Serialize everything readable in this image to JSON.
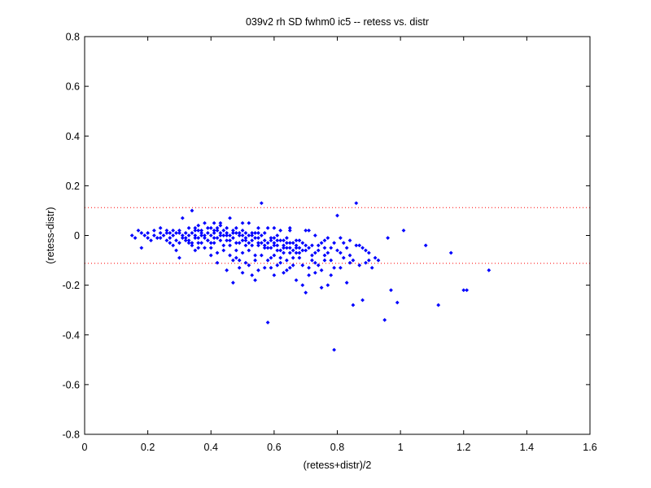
{
  "chart_data": {
    "type": "scatter",
    "title": "039v2 rh SD fwhm0 ic5 -- retess vs. distr",
    "xlabel": "(retess+distr)/2",
    "ylabel": "(retess-distr)",
    "xlim": [
      0,
      1.6
    ],
    "ylim": [
      -0.8,
      0.8
    ],
    "xticks": [
      "0",
      "0.2",
      "0.4",
      "0.6",
      "0.8",
      "1",
      "1.2",
      "1.4",
      "1.6"
    ],
    "yticks": [
      "-0.8",
      "-0.6",
      "-0.4",
      "-0.2",
      "0",
      "0.2",
      "0.4",
      "0.6",
      "0.8"
    ],
    "grid": false,
    "marker_color": "#0000ff",
    "reference_line_color": "#ff0000",
    "reference_lines": [
      0.112,
      -0.112
    ],
    "points": [
      [
        0.15,
        0.0
      ],
      [
        0.16,
        -0.01
      ],
      [
        0.17,
        0.02
      ],
      [
        0.18,
        -0.05
      ],
      [
        0.19,
        0.0
      ],
      [
        0.2,
        0.01
      ],
      [
        0.21,
        -0.02
      ],
      [
        0.22,
        0.02
      ],
      [
        0.23,
        -0.01
      ],
      [
        0.24,
        0.03
      ],
      [
        0.25,
        0.0
      ],
      [
        0.26,
        0.02
      ],
      [
        0.27,
        -0.03
      ],
      [
        0.28,
        0.0
      ],
      [
        0.29,
        -0.06
      ],
      [
        0.3,
        0.01
      ],
      [
        0.3,
        -0.09
      ],
      [
        0.31,
        0.07
      ],
      [
        0.32,
        -0.02
      ],
      [
        0.33,
        0.03
      ],
      [
        0.34,
        0.1
      ],
      [
        0.34,
        -0.03
      ],
      [
        0.35,
        -0.06
      ],
      [
        0.36,
        0.04
      ],
      [
        0.36,
        -0.01
      ],
      [
        0.37,
        0.02
      ],
      [
        0.38,
        -0.05
      ],
      [
        0.38,
        0.05
      ],
      [
        0.39,
        -0.02
      ],
      [
        0.4,
        0.03
      ],
      [
        0.4,
        -0.08
      ],
      [
        0.41,
        -0.03
      ],
      [
        0.42,
        0.02
      ],
      [
        0.42,
        -0.11
      ],
      [
        0.43,
        0.05
      ],
      [
        0.44,
        -0.04
      ],
      [
        0.45,
        0.01
      ],
      [
        0.45,
        -0.14
      ],
      [
        0.46,
        -0.02
      ],
      [
        0.46,
        0.07
      ],
      [
        0.47,
        -0.19
      ],
      [
        0.48,
        0.03
      ],
      [
        0.48,
        -0.06
      ],
      [
        0.49,
        -0.1
      ],
      [
        0.5,
        0.02
      ],
      [
        0.5,
        -0.15
      ],
      [
        0.51,
        -0.04
      ],
      [
        0.52,
        0.05
      ],
      [
        0.52,
        -0.12
      ],
      [
        0.53,
        0.0
      ],
      [
        0.54,
        -0.08
      ],
      [
        0.54,
        -0.18
      ],
      [
        0.55,
        -0.03
      ],
      [
        0.56,
        0.13
      ],
      [
        0.57,
        -0.05
      ],
      [
        0.57,
        -0.13
      ],
      [
        0.58,
        -0.35
      ],
      [
        0.58,
        0.03
      ],
      [
        0.59,
        -0.09
      ],
      [
        0.6,
        -0.01
      ],
      [
        0.6,
        -0.16
      ],
      [
        0.61,
        -0.04
      ],
      [
        0.62,
        -0.11
      ],
      [
        0.62,
        0.02
      ],
      [
        0.63,
        -0.07
      ],
      [
        0.64,
        -0.14
      ],
      [
        0.64,
        -0.03
      ],
      [
        0.65,
        0.02
      ],
      [
        0.66,
        -0.09
      ],
      [
        0.67,
        -0.05
      ],
      [
        0.67,
        -0.18
      ],
      [
        0.68,
        -0.02
      ],
      [
        0.69,
        -0.12
      ],
      [
        0.7,
        -0.06
      ],
      [
        0.7,
        -0.23
      ],
      [
        0.71,
        0.02
      ],
      [
        0.72,
        -0.08
      ],
      [
        0.73,
        -0.15
      ],
      [
        0.74,
        -0.04
      ],
      [
        0.75,
        -0.21
      ],
      [
        0.76,
        -0.1
      ],
      [
        0.77,
        -0.01
      ],
      [
        0.78,
        -0.16
      ],
      [
        0.79,
        -0.46
      ],
      [
        0.8,
        -0.06
      ],
      [
        0.8,
        0.08
      ],
      [
        0.81,
        -0.13
      ],
      [
        0.82,
        -0.03
      ],
      [
        0.83,
        -0.19
      ],
      [
        0.84,
        -0.08
      ],
      [
        0.85,
        -0.28
      ],
      [
        0.86,
        -0.04
      ],
      [
        0.86,
        0.13
      ],
      [
        0.87,
        -0.12
      ],
      [
        0.88,
        -0.26
      ],
      [
        0.89,
        -0.06
      ],
      [
        0.9,
        -0.1
      ],
      [
        0.91,
        -0.13
      ],
      [
        0.92,
        -0.09
      ],
      [
        0.95,
        -0.34
      ],
      [
        0.96,
        -0.01
      ],
      [
        0.97,
        -0.22
      ],
      [
        0.99,
        -0.27
      ],
      [
        1.01,
        0.02
      ],
      [
        1.08,
        -0.04
      ],
      [
        1.12,
        -0.28
      ],
      [
        1.16,
        -0.07
      ],
      [
        1.2,
        -0.22
      ],
      [
        1.21,
        -0.22
      ],
      [
        1.28,
        -0.14
      ],
      [
        0.22,
        0.0
      ],
      [
        0.24,
        -0.01
      ],
      [
        0.26,
        0.01
      ],
      [
        0.28,
        0.02
      ],
      [
        0.29,
        0.01
      ],
      [
        0.31,
        0.0
      ],
      [
        0.32,
        -0.01
      ],
      [
        0.33,
        -0.02
      ],
      [
        0.34,
        0.01
      ],
      [
        0.35,
        0.0
      ],
      [
        0.36,
        0.02
      ],
      [
        0.37,
        -0.03
      ],
      [
        0.38,
        0.0
      ],
      [
        0.39,
        0.01
      ],
      [
        0.4,
        0.0
      ],
      [
        0.41,
        0.02
      ],
      [
        0.42,
        -0.01
      ],
      [
        0.43,
        0.0
      ],
      [
        0.44,
        0.02
      ],
      [
        0.45,
        -0.02
      ],
      [
        0.46,
        0.0
      ],
      [
        0.47,
        -0.01
      ],
      [
        0.48,
        -0.03
      ],
      [
        0.49,
        0.0
      ],
      [
        0.5,
        -0.02
      ],
      [
        0.51,
        0.01
      ],
      [
        0.52,
        -0.03
      ],
      [
        0.53,
        -0.02
      ],
      [
        0.54,
        -0.01
      ],
      [
        0.55,
        -0.04
      ],
      [
        0.56,
        0.0
      ],
      [
        0.57,
        -0.02
      ],
      [
        0.58,
        -0.03
      ],
      [
        0.59,
        -0.05
      ],
      [
        0.6,
        -0.03
      ],
      [
        0.61,
        -0.02
      ],
      [
        0.62,
        -0.06
      ],
      [
        0.63,
        -0.04
      ],
      [
        0.64,
        -0.05
      ],
      [
        0.65,
        -0.03
      ],
      [
        0.66,
        -0.06
      ],
      [
        0.67,
        -0.04
      ],
      [
        0.68,
        -0.05
      ],
      [
        0.69,
        -0.03
      ],
      [
        0.71,
        -0.05
      ],
      [
        0.72,
        -0.04
      ],
      [
        0.74,
        -0.06
      ],
      [
        0.76,
        -0.05
      ],
      [
        0.27,
        0.01
      ],
      [
        0.29,
        -0.02
      ],
      [
        0.3,
        0.02
      ],
      [
        0.32,
        0.01
      ],
      [
        0.33,
        -0.03
      ],
      [
        0.35,
        0.02
      ],
      [
        0.36,
        -0.03
      ],
      [
        0.37,
        0.01
      ],
      [
        0.38,
        -0.01
      ],
      [
        0.39,
        0.03
      ],
      [
        0.4,
        -0.03
      ],
      [
        0.41,
        0.01
      ],
      [
        0.42,
        0.03
      ],
      [
        0.43,
        -0.02
      ],
      [
        0.44,
        0.0
      ],
      [
        0.45,
        0.03
      ],
      [
        0.46,
        -0.04
      ],
      [
        0.47,
        0.01
      ],
      [
        0.48,
        0.01
      ],
      [
        0.49,
        -0.03
      ],
      [
        0.5,
        0.0
      ],
      [
        0.51,
        -0.02
      ],
      [
        0.52,
        0.0
      ],
      [
        0.53,
        -0.04
      ],
      [
        0.54,
        0.01
      ],
      [
        0.55,
        -0.01
      ],
      [
        0.56,
        -0.03
      ],
      [
        0.57,
        0.01
      ],
      [
        0.58,
        -0.05
      ],
      [
        0.59,
        -0.02
      ],
      [
        0.6,
        -0.04
      ],
      [
        0.61,
        -0.06
      ],
      [
        0.62,
        -0.02
      ],
      [
        0.63,
        -0.05
      ],
      [
        0.64,
        -0.01
      ],
      [
        0.65,
        -0.07
      ],
      [
        0.66,
        -0.03
      ],
      [
        0.67,
        -0.02
      ],
      [
        0.68,
        -0.07
      ],
      [
        0.7,
        -0.04
      ],
      [
        0.73,
        -0.07
      ],
      [
        0.75,
        -0.03
      ],
      [
        0.77,
        -0.07
      ],
      [
        0.78,
        -0.05
      ],
      [
        0.33,
        0.0
      ],
      [
        0.35,
        -0.01
      ],
      [
        0.37,
        0.0
      ],
      [
        0.39,
        -0.02
      ],
      [
        0.41,
        -0.01
      ],
      [
        0.43,
        0.01
      ],
      [
        0.45,
        0.0
      ],
      [
        0.47,
        0.02
      ],
      [
        0.49,
        0.01
      ],
      [
        0.51,
        -0.01
      ],
      [
        0.53,
        0.01
      ],
      [
        0.55,
        0.01
      ],
      [
        0.57,
        -0.04
      ],
      [
        0.59,
        -0.01
      ],
      [
        0.61,
        0.0
      ],
      [
        0.63,
        -0.02
      ],
      [
        0.65,
        -0.05
      ],
      [
        0.67,
        -0.07
      ],
      [
        0.69,
        -0.06
      ],
      [
        0.44,
        -0.06
      ],
      [
        0.46,
        -0.08
      ],
      [
        0.48,
        -0.09
      ],
      [
        0.5,
        -0.07
      ],
      [
        0.52,
        -0.06
      ],
      [
        0.54,
        -0.1
      ],
      [
        0.56,
        -0.08
      ],
      [
        0.58,
        -0.1
      ],
      [
        0.6,
        -0.08
      ],
      [
        0.62,
        -0.09
      ],
      [
        0.64,
        -0.1
      ],
      [
        0.66,
        -0.12
      ],
      [
        0.68,
        -0.09
      ],
      [
        0.72,
        -0.1
      ],
      [
        0.74,
        -0.12
      ],
      [
        0.76,
        -0.08
      ],
      [
        0.78,
        -0.1
      ],
      [
        0.82,
        -0.09
      ],
      [
        0.84,
        -0.11
      ],
      [
        0.4,
        -0.05
      ],
      [
        0.42,
        -0.07
      ],
      [
        0.36,
        -0.05
      ],
      [
        0.34,
        -0.04
      ],
      [
        0.3,
        -0.03
      ],
      [
        0.28,
        -0.04
      ],
      [
        0.26,
        -0.02
      ],
      [
        0.24,
        0.01
      ],
      [
        0.2,
        -0.01
      ],
      [
        0.18,
        0.01
      ],
      [
        0.53,
        -0.16
      ],
      [
        0.55,
        -0.14
      ],
      [
        0.59,
        -0.13
      ],
      [
        0.61,
        -0.12
      ],
      [
        0.63,
        -0.15
      ],
      [
        0.65,
        -0.13
      ],
      [
        0.71,
        -0.16
      ],
      [
        0.73,
        -0.11
      ],
      [
        0.75,
        -0.14
      ],
      [
        0.77,
        -0.2
      ],
      [
        0.79,
        -0.13
      ],
      [
        0.81,
        -0.07
      ],
      [
        0.83,
        -0.05
      ],
      [
        0.85,
        -0.1
      ],
      [
        0.87,
        -0.04
      ],
      [
        0.89,
        -0.11
      ],
      [
        0.69,
        -0.2
      ],
      [
        0.71,
        -0.13
      ],
      [
        0.49,
        -0.13
      ],
      [
        0.47,
        -0.1
      ],
      [
        0.51,
        -0.11
      ],
      [
        0.35,
        0.03
      ],
      [
        0.31,
        -0.01
      ],
      [
        0.27,
        -0.01
      ],
      [
        0.41,
        0.05
      ],
      [
        0.43,
        0.04
      ],
      [
        0.5,
        0.05
      ],
      [
        0.55,
        0.03
      ],
      [
        0.6,
        0.03
      ],
      [
        0.65,
        0.03
      ],
      [
        0.7,
        0.02
      ],
      [
        0.73,
        0.0
      ],
      [
        0.76,
        -0.02
      ],
      [
        0.79,
        -0.03
      ],
      [
        0.81,
        -0.01
      ],
      [
        0.84,
        -0.02
      ],
      [
        0.88,
        -0.05
      ],
      [
        0.9,
        -0.07
      ],
      [
        0.93,
        -0.1
      ]
    ]
  }
}
